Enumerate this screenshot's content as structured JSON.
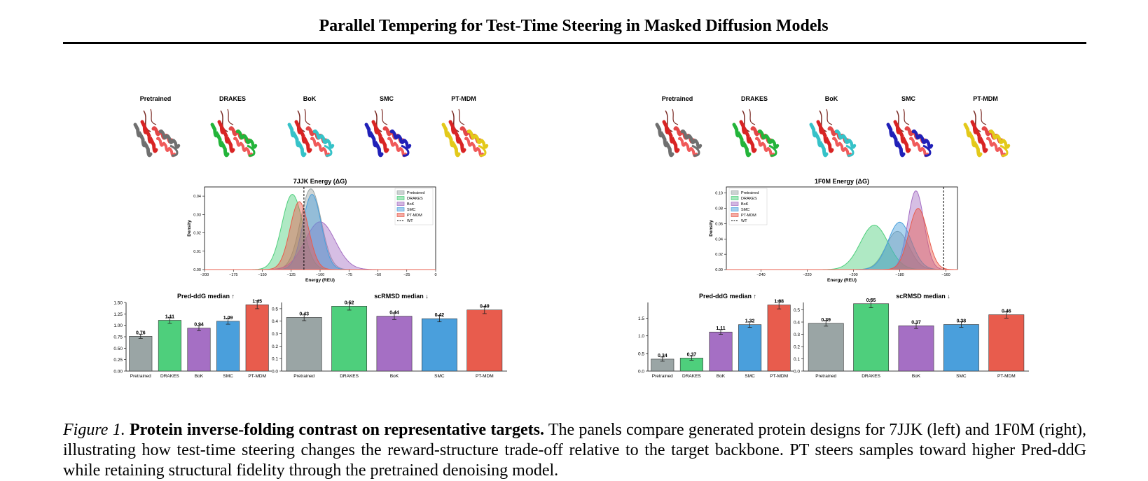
{
  "page": {
    "title": "Parallel Tempering for Test-Time Steering in Masked Diffusion Models"
  },
  "methods": [
    "Pretrained",
    "DRAKES",
    "BoK",
    "SMC",
    "PT-MDM"
  ],
  "method_colors": {
    "Pretrained": "#9aa5a5",
    "DRAKES": "#4ecf7c",
    "BoK": "#a56fc4",
    "SMC": "#4a9fdc",
    "PT-MDM": "#e85c4d"
  },
  "protein_render_colors": {
    "Pretrained": "#6f6f6f",
    "DRAKES": "#23b43a",
    "BoK": "#36c2c8",
    "SMC": "#2020b8",
    "PT-MDM": "#e3c91a"
  },
  "panels": [
    {
      "target": "7JJK",
      "images": {
        "style": "helix-bundle"
      },
      "energy": {
        "title": "7JJK Energy (ΔG)",
        "xlabel": "Energy (REU)",
        "ylabel": "Density",
        "xticks": [
          "−200",
          "−175",
          "−150",
          "−125",
          "−100",
          "−75",
          "−50",
          "−25",
          "0"
        ],
        "yticks": [
          "0.00",
          "0.01",
          "0.02",
          "0.03",
          "0.04"
        ],
        "legend": [
          "Pretrained",
          "DRAKES",
          "BoK",
          "SMC",
          "PT-MDM",
          "WT"
        ],
        "legend_position": "top-right"
      },
      "ddg": {
        "title": "Pred-ddG median ↑",
        "values": [
          0.76,
          1.11,
          0.94,
          1.09,
          1.45
        ],
        "labels": [
          "0.76",
          "1.11",
          "0.94",
          "1.09",
          "1.45"
        ],
        "yticks": [
          "0.00",
          "0.25",
          "0.50",
          "0.75",
          "1.00",
          "1.25",
          "1.50"
        ]
      },
      "rmsd": {
        "title": "scRMSD median ↓",
        "values": [
          0.43,
          0.52,
          0.44,
          0.42,
          0.49
        ],
        "labels": [
          "0.43",
          "0.52",
          "0.44",
          "0.42",
          "0.49"
        ],
        "yticks": [
          "0.0",
          "0.1",
          "0.2",
          "0.3",
          "0.4",
          "0.5"
        ]
      }
    },
    {
      "target": "1F0M",
      "images": {
        "style": "helix-bundle"
      },
      "energy": {
        "title": "1F0M Energy (ΔG)",
        "xlabel": "Energy (REU)",
        "ylabel": "Density",
        "xticks": [
          "−240",
          "−220",
          "−200",
          "−180",
          "−160"
        ],
        "yticks": [
          "0.00",
          "0.02",
          "0.04",
          "0.06",
          "0.08",
          "0.10"
        ],
        "legend": [
          "Pretrained",
          "DRAKES",
          "BoK",
          "SMC",
          "PT-MDM",
          "WT"
        ],
        "legend_position": "top-left"
      },
      "ddg": {
        "title": "Pred-ddG median ↑",
        "values": [
          0.34,
          0.37,
          1.11,
          1.32,
          1.88
        ],
        "labels": [
          "0.34",
          "0.37",
          "1.11",
          "1.32",
          "1.88"
        ],
        "yticks": [
          "0.0",
          "0.5",
          "1.0",
          "1.5"
        ]
      },
      "rmsd": {
        "title": "scRMSD median ↓",
        "values": [
          0.39,
          0.55,
          0.37,
          0.38,
          0.46
        ],
        "labels": [
          "0.39",
          "0.55",
          "0.37",
          "0.38",
          "0.46"
        ],
        "yticks": [
          "0.0",
          "0.1",
          "0.2",
          "0.3",
          "0.4",
          "0.5"
        ]
      }
    }
  ],
  "chart_data": [
    {
      "type": "area",
      "title": "7JJK Energy (ΔG)",
      "xlabel": "Energy (REU)",
      "ylabel": "Density",
      "xlim": [
        -200,
        0
      ],
      "ylim": [
        0,
        0.045
      ],
      "series": [
        {
          "name": "Pretrained",
          "peak": -108,
          "sd": 9,
          "height": 0.044
        },
        {
          "name": "DRAKES",
          "peak": -124,
          "sd": 9,
          "height": 0.041
        },
        {
          "name": "BoK",
          "peak": -100,
          "sd": 13,
          "height": 0.026
        },
        {
          "name": "SMC",
          "peak": -107,
          "sd": 8,
          "height": 0.041
        },
        {
          "name": "PT-MDM",
          "peak": -118,
          "sd": 8,
          "height": 0.037
        }
      ],
      "reference": {
        "name": "WT",
        "x": -114
      }
    },
    {
      "type": "area",
      "title": "1F0M Energy (ΔG)",
      "xlabel": "Energy (REU)",
      "ylabel": "Density",
      "xlim": [
        -255,
        -155
      ],
      "ylim": [
        0,
        0.108
      ],
      "series": [
        {
          "name": "Pretrained",
          "peak": -181,
          "sd": 5,
          "height": 0.05
        },
        {
          "name": "DRAKES",
          "peak": -191,
          "sd": 6,
          "height": 0.058
        },
        {
          "name": "BoK",
          "peak": -173,
          "sd": 3.5,
          "height": 0.103
        },
        {
          "name": "SMC",
          "peak": -180,
          "sd": 5,
          "height": 0.062
        },
        {
          "name": "PT-MDM",
          "peak": -172,
          "sd": 4,
          "height": 0.08
        }
      ],
      "reference": {
        "name": "WT",
        "x": -161
      }
    },
    {
      "type": "bar",
      "title": "Pred-ddG median ↑",
      "categories": [
        "Pretrained",
        "DRAKES",
        "BoK",
        "SMC",
        "PT-MDM"
      ],
      "values": [
        0.76,
        1.11,
        0.94,
        1.09,
        1.45
      ],
      "ylim": [
        0,
        1.5
      ]
    },
    {
      "type": "bar",
      "title": "scRMSD median ↓",
      "categories": [
        "Pretrained",
        "DRAKES",
        "BoK",
        "SMC",
        "PT-MDM"
      ],
      "values": [
        0.43,
        0.52,
        0.44,
        0.42,
        0.49
      ],
      "ylim": [
        0,
        0.55
      ]
    },
    {
      "type": "bar",
      "title": "Pred-ddG median ↑",
      "categories": [
        "Pretrained",
        "DRAKES",
        "BoK",
        "SMC",
        "PT-MDM"
      ],
      "values": [
        0.34,
        0.37,
        1.11,
        1.32,
        1.88
      ],
      "ylim": [
        0,
        1.95
      ]
    },
    {
      "type": "bar",
      "title": "scRMSD median ↓",
      "categories": [
        "Pretrained",
        "DRAKES",
        "BoK",
        "SMC",
        "PT-MDM"
      ],
      "values": [
        0.39,
        0.55,
        0.37,
        0.38,
        0.46
      ],
      "ylim": [
        0,
        0.56
      ]
    }
  ],
  "caption": {
    "figure_label": "Figure 1.",
    "lead": "Protein inverse-folding contrast on representative targets.",
    "text": "The panels compare generated protein designs for 7JJK (left) and 1F0M (right), illustrating how test-time steering changes the reward-structure trade-off relative to the target backbone. PT steers samples toward higher Pred-ddG while retaining structural fidelity through the pretrained denoising model."
  }
}
